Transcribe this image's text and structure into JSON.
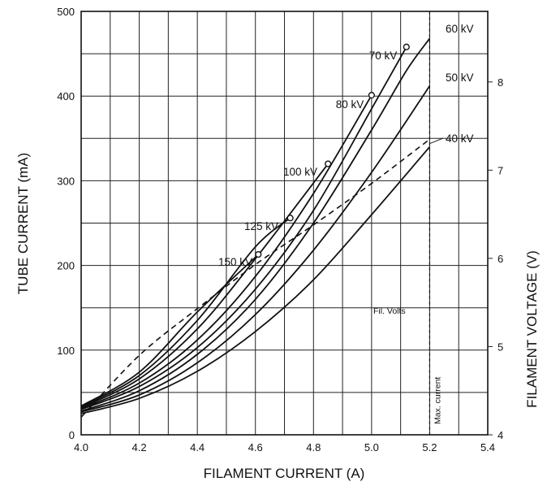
{
  "chart_data": {
    "type": "line",
    "xlabel": "FILAMENT CURRENT (A)",
    "ylabel": "TUBE CURRENT (mA)",
    "y2label": "FILAMENT VOLTAGE (V)",
    "xlim": [
      4.0,
      5.4
    ],
    "ylim": [
      0,
      500
    ],
    "y2lim": [
      4,
      8.8
    ],
    "x_ticks": [
      "4.0",
      "4.2",
      "4.4",
      "4.6",
      "4.8",
      "5.0",
      "5.2",
      "5.4"
    ],
    "y_ticks": [
      "0",
      "100",
      "200",
      "300",
      "400",
      "500"
    ],
    "y2_ticks": [
      "4",
      "5",
      "6",
      "7",
      "8"
    ],
    "grid": true,
    "series": [
      {
        "name": "60 kV",
        "x": [
          4.0,
          4.2,
          4.4,
          4.6,
          4.8,
          5.0,
          5.12,
          5.2
        ],
        "y": [
          28,
          52,
          95,
          160,
          250,
          360,
          430,
          468
        ],
        "marker_x": 5.12,
        "marker_y": 458
      },
      {
        "name": "70 kV",
        "x": [
          4.0,
          4.2,
          4.4,
          4.6,
          4.8,
          5.0,
          5.12
        ],
        "y": [
          30,
          57,
          103,
          172,
          265,
          385,
          458
        ]
      },
      {
        "name": "80 kV",
        "x": [
          4.0,
          4.2,
          4.4,
          4.6,
          4.8,
          5.0
        ],
        "y": [
          31,
          61,
          112,
          187,
          285,
          401
        ]
      },
      {
        "name": "100 kV",
        "x": [
          4.0,
          4.2,
          4.4,
          4.6,
          4.85
        ],
        "y": [
          32,
          66,
          125,
          208,
          320
        ]
      },
      {
        "name": "125 kV",
        "x": [
          4.0,
          4.2,
          4.4,
          4.6,
          4.72
        ],
        "y": [
          33,
          70,
          135,
          222,
          256
        ]
      },
      {
        "name": "150 kV",
        "x": [
          4.0,
          4.2,
          4.4,
          4.61
        ],
        "y": [
          34,
          74,
          145,
          213
        ]
      },
      {
        "name": "50 kV",
        "x": [
          4.0,
          4.2,
          4.4,
          4.6,
          4.8,
          5.0,
          5.2
        ],
        "y": [
          27,
          47,
          85,
          142,
          218,
          310,
          412
        ]
      },
      {
        "name": "40 kV",
        "x": [
          4.0,
          4.2,
          4.4,
          4.6,
          4.8,
          5.0,
          5.2
        ],
        "y": [
          25,
          43,
          75,
          122,
          183,
          260,
          340
        ]
      }
    ],
    "filament_volts": {
      "name": "Fil. Volts",
      "x": [
        4.0,
        4.2,
        4.4,
        4.6,
        4.8,
        5.0,
        5.2
      ],
      "y": [
        4.2,
        4.9,
        5.43,
        5.93,
        6.38,
        6.85,
        7.35
      ]
    },
    "max_current": {
      "label": "Max. current",
      "x": 5.2
    }
  }
}
